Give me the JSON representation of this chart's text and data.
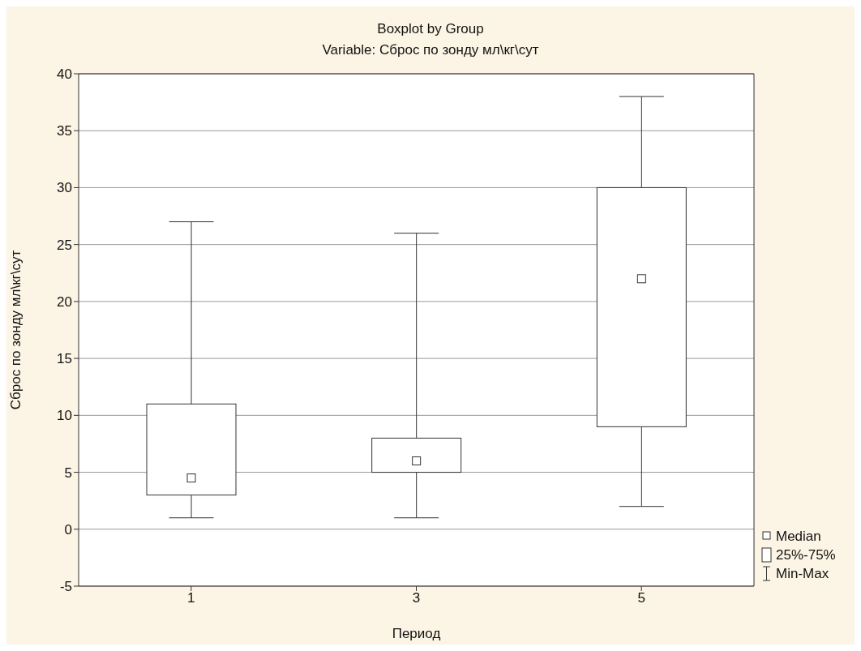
{
  "chart_data": {
    "type": "box",
    "title": "Boxplot by Group",
    "subtitle": "Variable: Сброс по зонду мл\\кг\\сут",
    "xlabel": "Период",
    "ylabel": "Сброс по зонду мл\\кг\\сут",
    "categories": [
      "1",
      "3",
      "5"
    ],
    "boxes": [
      {
        "low": 1,
        "q1": 3,
        "median": 4.5,
        "q3": 11,
        "high": 27
      },
      {
        "low": 1,
        "q1": 5,
        "median": 6,
        "q3": 8,
        "high": 26
      },
      {
        "low": 2,
        "q1": 9,
        "median": 22,
        "q3": 30,
        "high": 38
      }
    ],
    "ylim": [
      -5,
      40
    ],
    "yticks": [
      -5,
      0,
      5,
      10,
      15,
      20,
      25,
      30,
      35,
      40
    ],
    "grid": "y",
    "annotations": [
      "Median",
      "25%-75%",
      "Min-Max"
    ]
  }
}
